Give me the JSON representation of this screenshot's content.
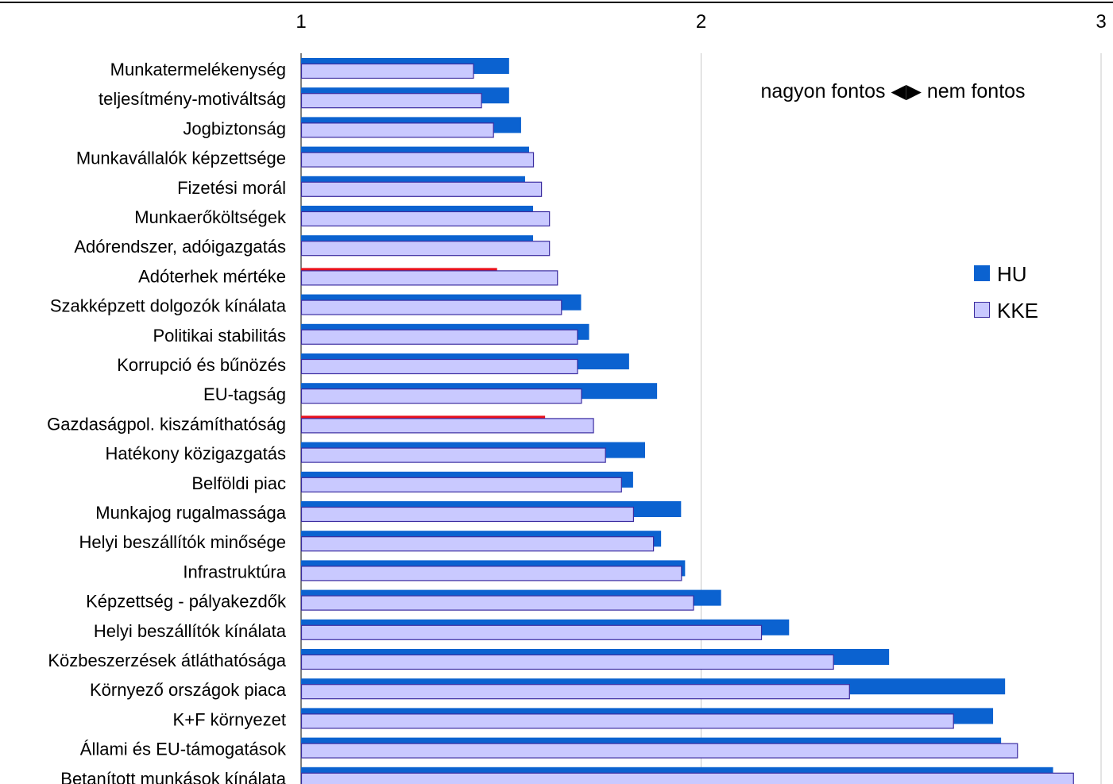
{
  "chart_data": {
    "type": "bar",
    "orientation": "horizontal",
    "xlim": [
      1,
      3
    ],
    "xticks": [
      "1",
      "2",
      "3"
    ],
    "tick_position": "top",
    "grid": "vertical",
    "legend_position": "right",
    "annotation": "nagyon fontos ◀▶ nem fontos",
    "categories": [
      "Munkatermelékenység",
      "teljesítmény-motiváltság",
      "Jogbiztonság",
      "Munkavállalók képzettsége",
      "Fizetési morál",
      "Munkaerőköltségek",
      "Adórendszer, adóigazgatás",
      "Adóterhek mértéke",
      "Szakképzett dolgozók kínálata",
      "Politikai stabilitás",
      "Korrupció és bűnözés",
      "EU-tagság ",
      "Gazdaságpol. kiszámíthatóság",
      "Hatékony közigazgatás",
      "Belföldi piac",
      "Munkajog rugalmassága",
      "Helyi beszállítók minősége",
      "Infrastruktúra",
      "Képzettség - pályakezdők",
      "Helyi beszállítók kínálata",
      "Közbeszerzések átláthatósága",
      "Környező országok piaca",
      "K+F környezet",
      "Állami és EU-támogatások",
      "Betanított munkások kínálata"
    ],
    "series": [
      {
        "name": "HU",
        "color": "#0b62d0",
        "values": [
          1.52,
          1.52,
          1.55,
          1.57,
          1.56,
          1.58,
          1.58,
          1.49,
          1.7,
          1.72,
          1.82,
          1.89,
          1.61,
          1.86,
          1.83,
          1.95,
          1.9,
          1.96,
          2.05,
          2.22,
          2.47,
          2.76,
          2.73,
          2.75,
          2.88
        ],
        "highlight_color": "#e8101c",
        "highlight_categories": [
          "Adóterhek mértéke",
          "Gazdaságpol. kiszámíthatóság"
        ]
      },
      {
        "name": "KKE",
        "color": "#c9c9ff",
        "border": "#3c2da0",
        "values": [
          1.43,
          1.45,
          1.48,
          1.58,
          1.6,
          1.62,
          1.62,
          1.64,
          1.65,
          1.69,
          1.69,
          1.7,
          1.73,
          1.76,
          1.8,
          1.83,
          1.88,
          1.95,
          1.98,
          2.15,
          2.33,
          2.37,
          2.63,
          2.79,
          2.93
        ]
      }
    ]
  }
}
